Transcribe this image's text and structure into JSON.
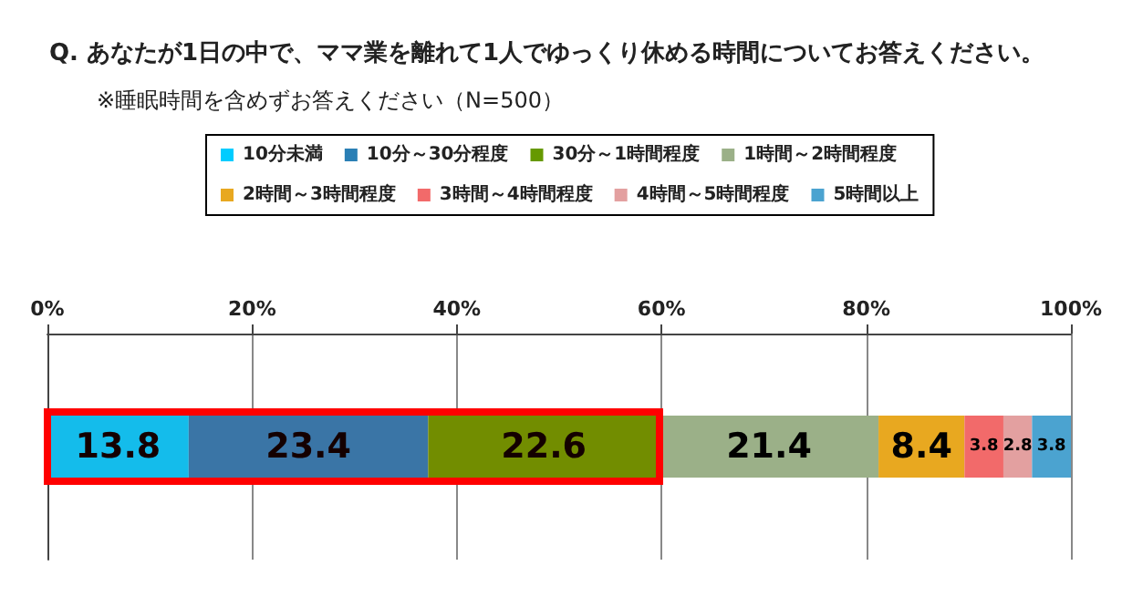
{
  "chart_data": {
    "type": "bar",
    "orientation": "horizontal",
    "stacked": true,
    "title": "Q. あなたが1日の中で、ママ業を離れて1人でゆっくり休める時間についてお答えください。",
    "subtitle": "※睡眠時間を含めずお答えください（N=500）",
    "categories": [
      null
    ],
    "series": [
      {
        "name": "10分未満",
        "color": "#00ccff",
        "values": [
          13.8
        ]
      },
      {
        "name": "10分～30分程度",
        "color": "#2a7fb5",
        "values": [
          23.4
        ]
      },
      {
        "name": "30分～1時間程度",
        "color": "#669900",
        "values": [
          22.6
        ]
      },
      {
        "name": "1時間～2時間程度",
        "color": "#9bb088",
        "values": [
          21.4
        ]
      },
      {
        "name": "2時間～3時間程度",
        "color": "#e8a820",
        "values": [
          8.4
        ]
      },
      {
        "name": "3時間～4時間程度",
        "color": "#f26a6a",
        "values": [
          3.8
        ]
      },
      {
        "name": "4時間～5時間程度",
        "color": "#e3a0a0",
        "values": [
          2.8
        ]
      },
      {
        "name": "5時間以上",
        "color": "#4ba3d0",
        "values": [
          3.8
        ]
      }
    ],
    "xlim": [
      0,
      100
    ],
    "xticks": [
      {
        "value": 0,
        "label": "0%"
      },
      {
        "value": 20,
        "label": "20%"
      },
      {
        "value": 40,
        "label": "40%"
      },
      {
        "value": 60,
        "label": "60%"
      },
      {
        "value": 80,
        "label": "80%"
      },
      {
        "value": 100,
        "label": "100%"
      }
    ],
    "bands": [
      {
        "axis": "x",
        "from": 0,
        "to": 59.8,
        "color": "#ff0000"
      }
    ],
    "grid": "x",
    "legend": "top",
    "data_labels": true
  }
}
